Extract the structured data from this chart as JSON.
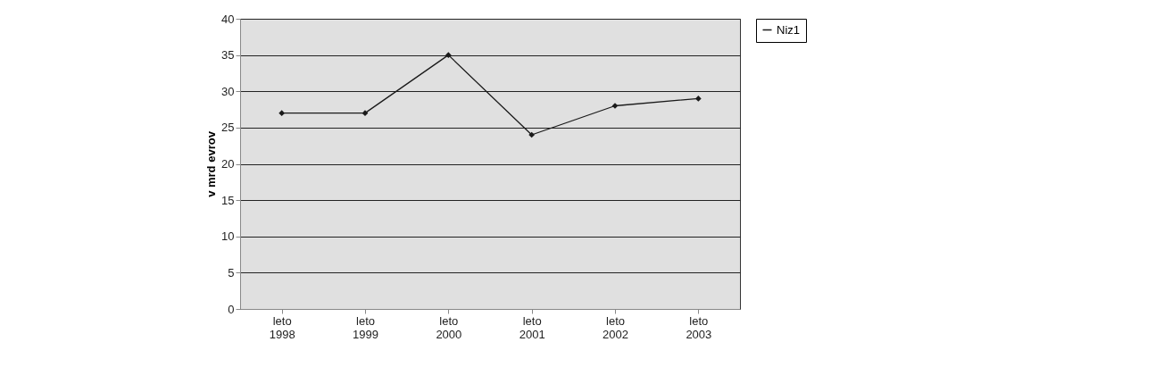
{
  "chart_data": {
    "type": "line",
    "ylabel": "v mrd evrov",
    "categories": [
      "leto 1998",
      "leto 1999",
      "leto 2000",
      "leto 2001",
      "leto 2002",
      "leto 2003"
    ],
    "series": [
      {
        "name": "Niz1",
        "color": "#1a1a1a",
        "values": [
          27,
          27,
          35,
          24,
          28,
          29
        ]
      }
    ],
    "ylim": [
      0,
      40
    ],
    "yticks": [
      0,
      5,
      10,
      15,
      20,
      25,
      30,
      35,
      40
    ],
    "grid": "y",
    "legend": "right",
    "marker": "diamond",
    "line_style": "solid"
  }
}
